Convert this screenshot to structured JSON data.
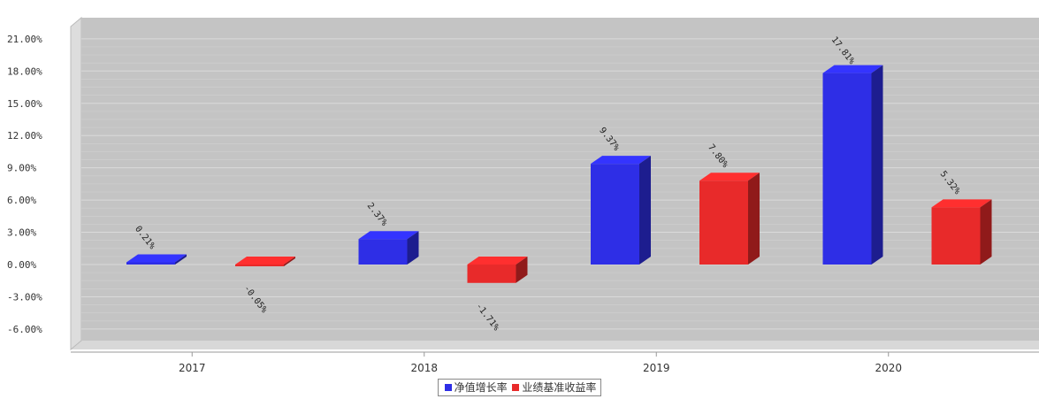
{
  "chart_data": {
    "type": "bar",
    "title": "",
    "xlabel": "",
    "ylabel": "",
    "categories": [
      "2017",
      "2018",
      "2019",
      "2020"
    ],
    "series": [
      {
        "name": "净值增长率",
        "values": [
          0.21,
          2.37,
          9.37,
          17.81
        ],
        "labels": [
          "0.21%",
          "2.37%",
          "9.37%",
          "17.81%"
        ]
      },
      {
        "name": "业绩基准收益率",
        "values": [
          -0.05,
          -1.71,
          7.8,
          5.32
        ],
        "labels": [
          "-0.05%",
          "-1.71%",
          "7.80%",
          "5.32%"
        ]
      }
    ],
    "yticks": [
      "21.00%",
      "18.00%",
      "15.00%",
      "12.00%",
      "9.00%",
      "6.00%",
      "3.00%",
      "0.00%",
      "-3.00%",
      "-6.00%"
    ],
    "ylim": [
      -7,
      22
    ],
    "grid": true,
    "legend_position": "bottom",
    "colors": {
      "series_0": "#2e2ee6",
      "series_1": "#e82a2a"
    }
  }
}
